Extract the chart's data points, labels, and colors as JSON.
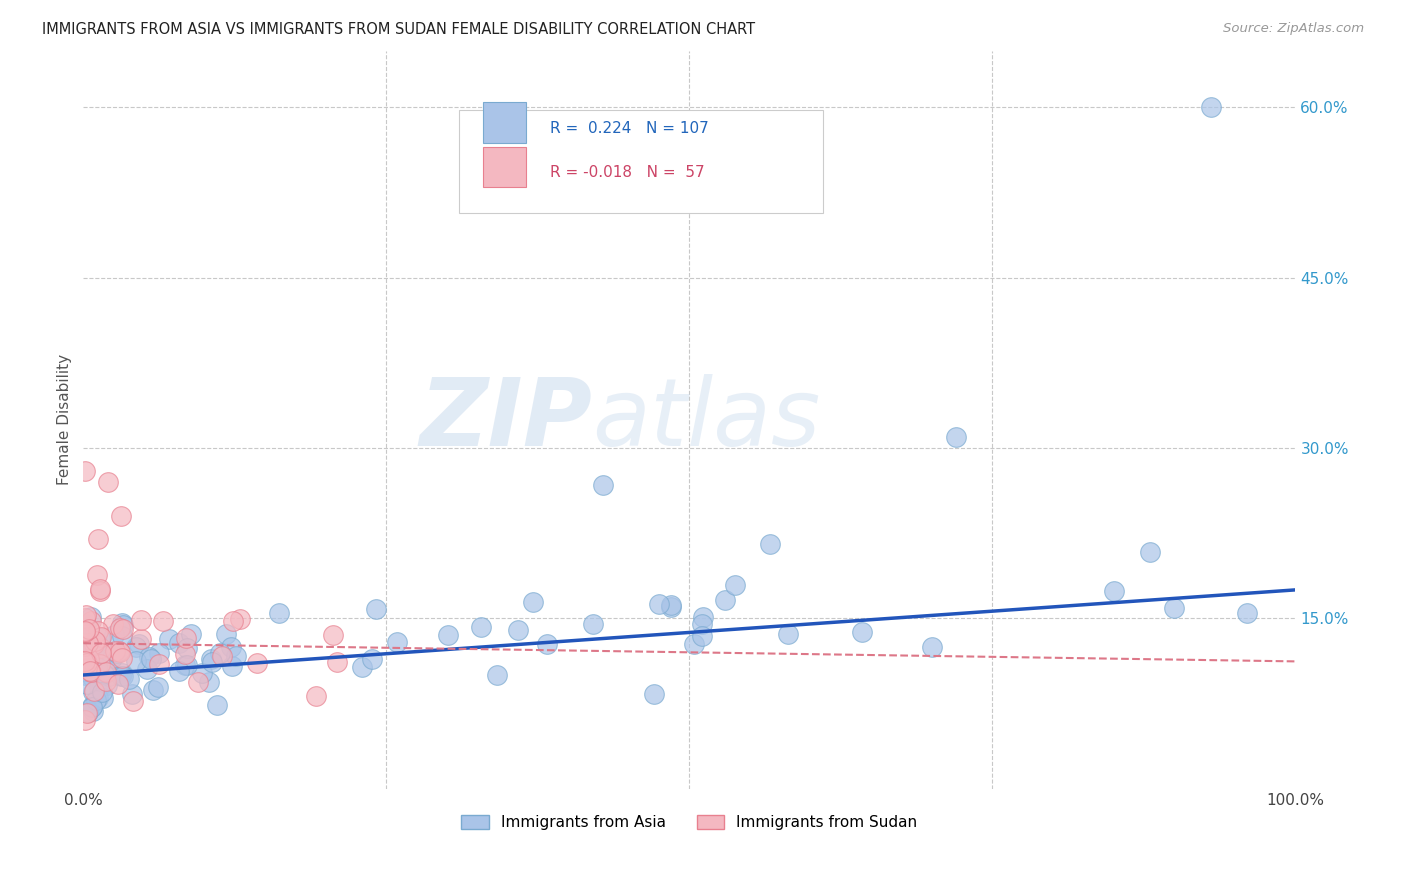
{
  "title": "IMMIGRANTS FROM ASIA VS IMMIGRANTS FROM SUDAN FEMALE DISABILITY CORRELATION CHART",
  "source": "Source: ZipAtlas.com",
  "ylabel": "Female Disability",
  "xlim": [
    0.0,
    1.0
  ],
  "ylim": [
    0.0,
    0.65
  ],
  "ytick_labels": [
    "15.0%",
    "30.0%",
    "45.0%",
    "60.0%"
  ],
  "ytick_values": [
    0.15,
    0.3,
    0.45,
    0.6
  ],
  "background_color": "#ffffff",
  "grid_color": "#c8c8c8",
  "watermark_zip": "ZIP",
  "watermark_atlas": "atlas",
  "legend_label_asia": "Immigrants from Asia",
  "legend_label_sudan": "Immigrants from Sudan",
  "R_asia": 0.224,
  "N_asia": 107,
  "R_sudan": -0.018,
  "N_sudan": 57,
  "dot_color_asia": "#aac4e8",
  "dot_color_sudan": "#f4b8c1",
  "dot_edge_asia": "#7aaad0",
  "dot_edge_sudan": "#e8808f",
  "line_color_asia": "#2255bb",
  "line_color_sudan": "#dd7788",
  "asia_line_y0": 0.1,
  "asia_line_y1": 0.175,
  "sudan_line_y0": 0.128,
  "sudan_line_y1": 0.112
}
